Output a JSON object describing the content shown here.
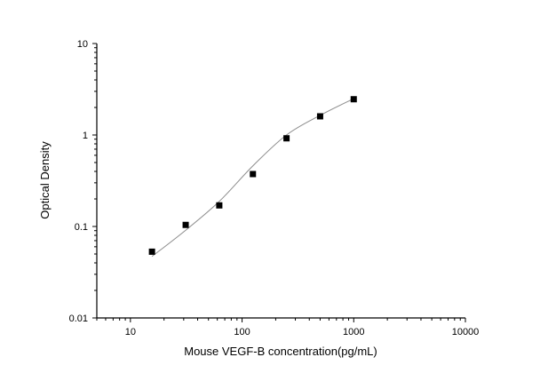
{
  "chart_data": {
    "type": "scatter",
    "title": "",
    "xlabel": "Mouse VEGF-B concentration(pg/mL)",
    "ylabel": "Optical Density",
    "xscale": "log",
    "yscale": "log",
    "xlim": [
      5,
      10000
    ],
    "ylim": [
      0.01,
      10
    ],
    "grid": false,
    "x_tick_labels": [
      "10",
      "100",
      "1000",
      "10000"
    ],
    "x_tick_values": [
      10,
      100,
      1000,
      10000
    ],
    "y_tick_labels": [
      "0.01",
      "0.1",
      "1",
      "10"
    ],
    "y_tick_values": [
      0.01,
      0.1,
      1,
      10
    ],
    "series": [
      {
        "marker": "square",
        "color": "#000000",
        "x": [
          15.6,
          31.25,
          62.5,
          125,
          250,
          500,
          1000
        ],
        "y": [
          0.053,
          0.104,
          0.17,
          0.374,
          0.92,
          1.6,
          2.46
        ]
      }
    ],
    "fit_curve": {
      "color": "#8c8c8c",
      "x": [
        15.6,
        31.25,
        62.5,
        125,
        250,
        500,
        1000
      ],
      "y": [
        0.047,
        0.091,
        0.188,
        0.46,
        1.0,
        1.64,
        2.5
      ]
    }
  }
}
